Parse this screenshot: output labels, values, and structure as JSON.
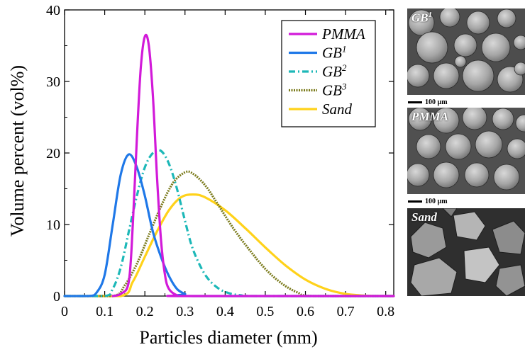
{
  "chart_data": {
    "type": "line",
    "xlabel": "Particles diameter (mm)",
    "ylabel": "Volume percent (vol%)",
    "xlim": [
      0,
      0.82
    ],
    "ylim": [
      0,
      40
    ],
    "xticks": [
      "0",
      "0.1",
      "0.2",
      "0.3",
      "0.4",
      "0.5",
      "0.6",
      "0.7",
      "0.8"
    ],
    "yticks": [
      "0",
      "10",
      "20",
      "30",
      "40"
    ],
    "legend_position": "top-right",
    "series": [
      {
        "name": "PMMA",
        "sup": "",
        "color": "#d21ad9",
        "dash": "solid",
        "x": [
          0.12,
          0.14,
          0.16,
          0.17,
          0.18,
          0.19,
          0.2,
          0.21,
          0.22,
          0.23,
          0.24,
          0.25,
          0.26,
          0.28,
          0.3,
          0.82
        ],
        "y": [
          0,
          0.3,
          2,
          10,
          22,
          32,
          36.3,
          35,
          28,
          17,
          8,
          3,
          1,
          0.1,
          0,
          0
        ]
      },
      {
        "name": "GB",
        "sup": "1",
        "color": "#1f78e8",
        "dash": "solid",
        "x": [
          0,
          0.06,
          0.08,
          0.1,
          0.12,
          0.14,
          0.16,
          0.18,
          0.2,
          0.22,
          0.24,
          0.26,
          0.28,
          0.3,
          0.32,
          0.82
        ],
        "y": [
          0,
          0,
          0.5,
          3,
          10,
          17,
          19.8,
          18,
          14,
          9,
          5.5,
          2.8,
          1,
          0.3,
          0,
          0
        ]
      },
      {
        "name": "GB",
        "sup": "2",
        "color": "#1db8b8",
        "dash": "dashdot",
        "x": [
          0,
          0.1,
          0.12,
          0.14,
          0.16,
          0.18,
          0.2,
          0.22,
          0.24,
          0.26,
          0.28,
          0.3,
          0.32,
          0.35,
          0.38,
          0.41,
          0.44,
          0.48,
          0.82
        ],
        "y": [
          0,
          0,
          1,
          4,
          9,
          14,
          18,
          20,
          20.3,
          18.5,
          15,
          10.5,
          6.5,
          3,
          1.2,
          0.4,
          0.1,
          0,
          0
        ]
      },
      {
        "name": "GB",
        "sup": "3",
        "color": "#7a7a1a",
        "dash": "dotted",
        "x": [
          0,
          0.12,
          0.15,
          0.18,
          0.21,
          0.24,
          0.27,
          0.3,
          0.32,
          0.35,
          0.38,
          0.42,
          0.46,
          0.5,
          0.54,
          0.58,
          0.62,
          0.82
        ],
        "y": [
          0,
          0,
          1.5,
          4.5,
          8.5,
          12.5,
          15.8,
          17.3,
          17.1,
          15.5,
          13,
          9.5,
          6.5,
          3.8,
          1.8,
          0.5,
          0,
          0
        ]
      },
      {
        "name": "Sand",
        "sup": "",
        "color": "#ffd21a",
        "dash": "solid",
        "x": [
          0,
          0.14,
          0.17,
          0.2,
          0.23,
          0.26,
          0.29,
          0.32,
          0.35,
          0.4,
          0.45,
          0.5,
          0.55,
          0.6,
          0.65,
          0.7,
          0.75,
          0.8,
          0.82
        ],
        "y": [
          0,
          0,
          2,
          5.5,
          9,
          12,
          13.8,
          14.2,
          13.8,
          12,
          9.5,
          6.8,
          4.3,
          2.3,
          1,
          0.3,
          0.05,
          0,
          0
        ]
      }
    ]
  },
  "images": [
    {
      "label": "GB",
      "sup": "1",
      "scale": "100 µm"
    },
    {
      "label": "PMMA",
      "sup": "",
      "scale": "100 µm"
    },
    {
      "label": "Sand",
      "sup": ""
    }
  ]
}
